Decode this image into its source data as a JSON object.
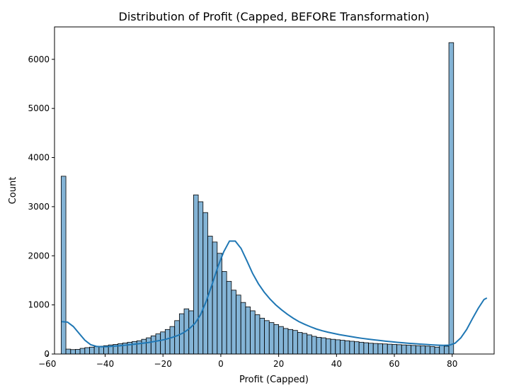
{
  "chart_data": {
    "type": "bar",
    "title": "Distribution of Profit (Capped, BEFORE Transformation)",
    "xlabel": "Profit (Capped)",
    "ylabel": "Count",
    "xlim": [
      -57.5,
      94.5
    ],
    "ylim": [
      0,
      6660
    ],
    "xticks": [
      -60,
      -40,
      -20,
      0,
      20,
      40,
      60,
      80
    ],
    "yticks": [
      0,
      1000,
      2000,
      3000,
      4000,
      5000,
      6000
    ],
    "bin_start": -55.2,
    "bin_width": 1.6348,
    "bar_color": "#1f77b4",
    "kde_color": "#1f77b4",
    "counts": [
      3620,
      100,
      90,
      95,
      115,
      130,
      140,
      150,
      160,
      170,
      185,
      195,
      210,
      225,
      240,
      255,
      270,
      300,
      330,
      370,
      410,
      450,
      500,
      560,
      680,
      820,
      920,
      880,
      3240,
      3100,
      2880,
      2400,
      2280,
      2050,
      1680,
      1480,
      1300,
      1200,
      1050,
      960,
      880,
      800,
      730,
      680,
      640,
      600,
      560,
      520,
      500,
      480,
      440,
      420,
      390,
      360,
      340,
      330,
      310,
      300,
      290,
      280,
      270,
      260,
      250,
      240,
      230,
      220,
      215,
      210,
      205,
      200,
      195,
      190,
      185,
      180,
      175,
      170,
      165,
      160,
      150,
      140,
      180,
      160,
      6340
    ],
    "kde": {
      "x": [
        -55,
        -53,
        -51,
        -49,
        -47,
        -45,
        -43,
        -41,
        -39,
        -37,
        -35,
        -33,
        -31,
        -29,
        -27,
        -25,
        -23,
        -21,
        -19,
        -17,
        -15,
        -13,
        -11,
        -9,
        -7,
        -5,
        -3,
        -1,
        1,
        3,
        5,
        7,
        9,
        11,
        13,
        15,
        17,
        19,
        21,
        23,
        25,
        27,
        29,
        31,
        33,
        35,
        37,
        39,
        41,
        43,
        45,
        47,
        49,
        51,
        53,
        55,
        57,
        59,
        61,
        63,
        65,
        67,
        69,
        71,
        73,
        75,
        77,
        79,
        81,
        83,
        85,
        87,
        89,
        91,
        92
      ],
      "y": [
        660,
        650,
        560,
        420,
        280,
        190,
        155,
        148,
        152,
        160,
        168,
        180,
        192,
        205,
        220,
        235,
        255,
        275,
        300,
        335,
        375,
        430,
        510,
        620,
        800,
        1080,
        1420,
        1780,
        2080,
        2300,
        2300,
        2150,
        1900,
        1640,
        1430,
        1260,
        1120,
        1000,
        900,
        810,
        730,
        660,
        605,
        555,
        510,
        475,
        445,
        420,
        395,
        375,
        355,
        335,
        318,
        302,
        288,
        275,
        262,
        250,
        238,
        228,
        218,
        210,
        202,
        194,
        186,
        180,
        176,
        180,
        220,
        330,
        500,
        720,
        930,
        1110,
        1140
      ]
    }
  }
}
